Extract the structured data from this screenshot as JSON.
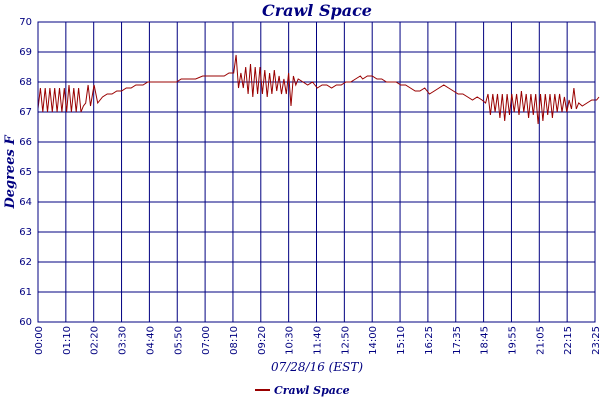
{
  "chart_data": {
    "type": "line",
    "title": "Crawl Space",
    "xlabel": "07/28/16 (EST)",
    "ylabel": "Degrees F",
    "ylim": [
      60,
      70
    ],
    "yticks": [
      60,
      61,
      62,
      63,
      64,
      65,
      66,
      67,
      68,
      69,
      70
    ],
    "xticks": [
      "00:00",
      "01:10",
      "02:20",
      "03:30",
      "04:40",
      "05:50",
      "07:00",
      "08:10",
      "09:20",
      "10:30",
      "11:40",
      "12:50",
      "14:00",
      "15:10",
      "16:25",
      "17:35",
      "18:45",
      "19:55",
      "21:05",
      "22:15",
      "23:25"
    ],
    "grid": true,
    "legend_position": "bottom",
    "colors": {
      "series": "#990000",
      "frame": "#000080"
    },
    "series": [
      {
        "name": "Crawl Space",
        "points": [
          [
            0.0,
            67.1
          ],
          [
            0.1,
            67.8
          ],
          [
            0.2,
            67.0
          ],
          [
            0.3,
            67.8
          ],
          [
            0.4,
            67.0
          ],
          [
            0.5,
            67.8
          ],
          [
            0.6,
            67.0
          ],
          [
            0.7,
            67.8
          ],
          [
            0.8,
            67.0
          ],
          [
            0.9,
            67.8
          ],
          [
            1.0,
            67.0
          ],
          [
            1.1,
            67.8
          ],
          [
            1.2,
            67.0
          ],
          [
            1.3,
            67.9
          ],
          [
            1.4,
            67.0
          ],
          [
            1.5,
            67.8
          ],
          [
            1.6,
            67.0
          ],
          [
            1.7,
            67.8
          ],
          [
            1.8,
            67.0
          ],
          [
            1.9,
            67.2
          ],
          [
            2.0,
            67.3
          ],
          [
            2.1,
            67.9
          ],
          [
            2.2,
            67.2
          ],
          [
            2.35,
            67.9
          ],
          [
            2.5,
            67.3
          ],
          [
            2.7,
            67.5
          ],
          [
            2.9,
            67.6
          ],
          [
            3.1,
            67.6
          ],
          [
            3.3,
            67.7
          ],
          [
            3.5,
            67.7
          ],
          [
            3.7,
            67.8
          ],
          [
            3.9,
            67.8
          ],
          [
            4.1,
            67.9
          ],
          [
            4.4,
            67.9
          ],
          [
            4.6,
            68.0
          ],
          [
            4.9,
            68.0
          ],
          [
            5.2,
            68.0
          ],
          [
            5.5,
            68.0
          ],
          [
            5.8,
            68.0
          ],
          [
            6.0,
            68.1
          ],
          [
            6.3,
            68.1
          ],
          [
            6.6,
            68.1
          ],
          [
            6.9,
            68.2
          ],
          [
            7.2,
            68.2
          ],
          [
            7.5,
            68.2
          ],
          [
            7.8,
            68.2
          ],
          [
            8.0,
            68.3
          ],
          [
            8.2,
            68.3
          ],
          [
            8.3,
            68.9
          ],
          [
            8.4,
            67.8
          ],
          [
            8.5,
            68.3
          ],
          [
            8.6,
            67.8
          ],
          [
            8.7,
            68.5
          ],
          [
            8.8,
            67.6
          ],
          [
            8.9,
            68.6
          ],
          [
            9.0,
            67.5
          ],
          [
            9.1,
            68.5
          ],
          [
            9.2,
            67.6
          ],
          [
            9.3,
            68.5
          ],
          [
            9.4,
            67.6
          ],
          [
            9.5,
            68.4
          ],
          [
            9.6,
            67.5
          ],
          [
            9.7,
            68.3
          ],
          [
            9.8,
            67.6
          ],
          [
            9.9,
            68.4
          ],
          [
            10.0,
            67.7
          ],
          [
            10.1,
            68.2
          ],
          [
            10.2,
            67.6
          ],
          [
            10.3,
            68.1
          ],
          [
            10.4,
            67.6
          ],
          [
            10.5,
            68.3
          ],
          [
            10.6,
            67.2
          ],
          [
            10.7,
            68.2
          ],
          [
            10.8,
            67.9
          ],
          [
            10.9,
            68.1
          ],
          [
            11.1,
            68.0
          ],
          [
            11.3,
            67.9
          ],
          [
            11.5,
            68.0
          ],
          [
            11.7,
            67.8
          ],
          [
            11.9,
            67.9
          ],
          [
            12.1,
            67.9
          ],
          [
            12.3,
            67.8
          ],
          [
            12.5,
            67.9
          ],
          [
            12.7,
            67.9
          ],
          [
            12.9,
            68.0
          ],
          [
            13.1,
            68.0
          ],
          [
            13.3,
            68.1
          ],
          [
            13.5,
            68.2
          ],
          [
            13.6,
            68.1
          ],
          [
            13.8,
            68.2
          ],
          [
            14.0,
            68.2
          ],
          [
            14.2,
            68.1
          ],
          [
            14.4,
            68.1
          ],
          [
            14.6,
            68.0
          ],
          [
            14.8,
            68.0
          ],
          [
            15.0,
            68.0
          ],
          [
            15.2,
            67.9
          ],
          [
            15.4,
            67.9
          ],
          [
            15.6,
            67.8
          ],
          [
            15.8,
            67.7
          ],
          [
            16.0,
            67.7
          ],
          [
            16.2,
            67.8
          ],
          [
            16.4,
            67.6
          ],
          [
            16.6,
            67.7
          ],
          [
            16.8,
            67.8
          ],
          [
            17.0,
            67.9
          ],
          [
            17.2,
            67.8
          ],
          [
            17.4,
            67.7
          ],
          [
            17.6,
            67.6
          ],
          [
            17.8,
            67.6
          ],
          [
            18.0,
            67.5
          ],
          [
            18.2,
            67.4
          ],
          [
            18.4,
            67.5
          ],
          [
            18.6,
            67.4
          ],
          [
            18.75,
            67.3
          ],
          [
            18.85,
            67.6
          ],
          [
            18.95,
            66.9
          ],
          [
            19.05,
            67.6
          ],
          [
            19.15,
            67.0
          ],
          [
            19.25,
            67.6
          ],
          [
            19.35,
            66.8
          ],
          [
            19.45,
            67.6
          ],
          [
            19.55,
            66.7
          ],
          [
            19.65,
            67.6
          ],
          [
            19.75,
            66.9
          ],
          [
            19.85,
            67.6
          ],
          [
            19.95,
            67.0
          ],
          [
            20.05,
            67.6
          ],
          [
            20.15,
            66.9
          ],
          [
            20.25,
            67.7
          ],
          [
            20.35,
            67.0
          ],
          [
            20.45,
            67.6
          ],
          [
            20.55,
            66.8
          ],
          [
            20.65,
            67.6
          ],
          [
            20.75,
            66.9
          ],
          [
            20.85,
            67.6
          ],
          [
            20.95,
            66.6
          ],
          [
            21.05,
            67.6
          ],
          [
            21.15,
            66.7
          ],
          [
            21.25,
            67.6
          ],
          [
            21.35,
            66.9
          ],
          [
            21.45,
            67.6
          ],
          [
            21.55,
            66.8
          ],
          [
            21.65,
            67.6
          ],
          [
            21.75,
            67.0
          ],
          [
            21.85,
            67.6
          ],
          [
            21.95,
            67.0
          ],
          [
            22.05,
            67.5
          ],
          [
            22.15,
            67.0
          ],
          [
            22.25,
            67.4
          ],
          [
            22.35,
            67.1
          ],
          [
            22.45,
            67.8
          ],
          [
            22.55,
            67.1
          ],
          [
            22.65,
            67.3
          ],
          [
            22.8,
            67.2
          ],
          [
            23.0,
            67.3
          ],
          [
            23.2,
            67.4
          ],
          [
            23.4,
            67.4
          ],
          [
            23.5,
            67.5
          ]
        ]
      }
    ]
  }
}
